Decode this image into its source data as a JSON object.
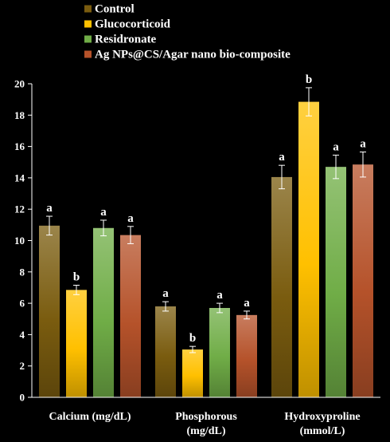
{
  "chart_data": {
    "type": "bar",
    "title": "",
    "xlabel": "",
    "ylabel": "",
    "ylim": [
      0,
      20
    ],
    "yticks": [
      0,
      2,
      4,
      6,
      8,
      10,
      12,
      14,
      16,
      18,
      20
    ],
    "grid": false,
    "legend_position": "top",
    "categories": [
      "Calcium (mg/dL)",
      "Phosphorous (mg/dL)",
      "Hydroxyproline (mmol/L)"
    ],
    "category_lines": [
      [
        "Calcium (mg/dL)"
      ],
      [
        "Phosphorous",
        "(mg/dL)"
      ],
      [
        "Hydroxyproline",
        "(mmol/L)"
      ]
    ],
    "series": [
      {
        "name": "Control",
        "color": "#7a5c0f",
        "values": [
          10.95,
          5.8,
          14.05
        ],
        "errors": [
          0.6,
          0.3,
          0.75
        ],
        "labels": [
          "a",
          "a",
          "a"
        ]
      },
      {
        "name": "Glucocorticoid",
        "color": "#ffc000",
        "values": [
          6.85,
          3.05,
          18.85
        ],
        "errors": [
          0.3,
          0.2,
          0.9
        ],
        "labels": [
          "b",
          "b",
          "b"
        ]
      },
      {
        "name": "Residronate",
        "color": "#70ad47",
        "values": [
          10.8,
          5.7,
          14.7
        ],
        "errors": [
          0.5,
          0.3,
          0.75
        ],
        "labels": [
          "a",
          "a",
          "a"
        ]
      },
      {
        "name": "Ag NPs@CS/Agar nano bio-composite",
        "color": "#b5522a",
        "values": [
          10.35,
          5.25,
          14.85
        ],
        "errors": [
          0.55,
          0.25,
          0.8
        ],
        "labels": [
          "a",
          "a",
          "a"
        ]
      }
    ]
  }
}
